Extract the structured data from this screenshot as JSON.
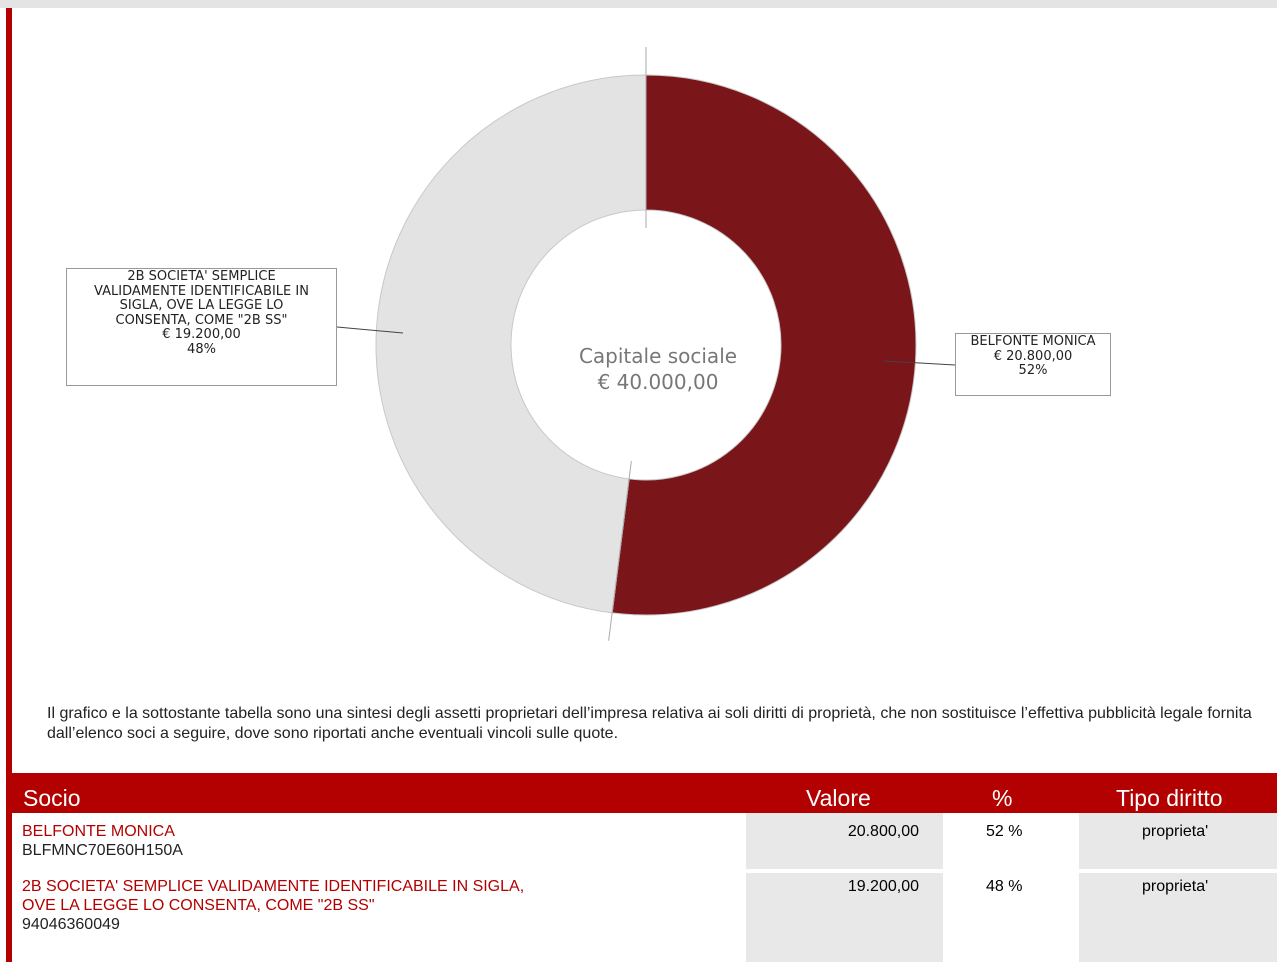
{
  "chart_data": {
    "type": "pie",
    "title": "",
    "center_label": [
      "Capitale sociale",
      "€ 40.000,00"
    ],
    "slices": [
      {
        "name": "BELFONTE MONICA",
        "value": 20800,
        "value_label": "€ 20.800,00",
        "percent_label": "52%",
        "color": "#7a1519"
      },
      {
        "name": "2B SOCIETA' SEMPLICE VALIDAMENTE IDENTIFICABILE IN SIGLA, OVE LA LEGGE LO CONSENTA, COME \"2B SS\"",
        "value": 19200,
        "value_label": "€ 19.200,00",
        "percent_label": "48%",
        "color": "#e3e3e3"
      }
    ]
  },
  "callouts": {
    "right": [
      "BELFONTE MONICA",
      "€ 20.800,00",
      "52%"
    ],
    "left": [
      "2B SOCIETA' SEMPLICE",
      "VALIDAMENTE IDENTIFICABILE IN",
      "SIGLA, OVE LA LEGGE LO",
      "CONSENTA, COME \"2B SS\"",
      "€ 19.200,00",
      "48%"
    ]
  },
  "note": "Il grafico e la sottostante tabella sono una sintesi degli assetti proprietari dell’impresa relativa ai soli diritti di proprietà, che non sostituisce l’effettiva pubblicità legale fornita dall’elenco soci a seguire, dove sono riportati anche eventuali vincoli sulle quote.",
  "table": {
    "headers": {
      "socio": "Socio",
      "valore": "Valore",
      "percent": "%",
      "tipo": "Tipo diritto"
    },
    "rows": [
      {
        "name_lines": [
          "BELFONTE MONICA"
        ],
        "code": "BLFMNC70E60H150A",
        "valore": "20.800,00",
        "percent": "52 %",
        "tipo": "proprieta'"
      },
      {
        "name_lines": [
          "2B SOCIETA' SEMPLICE VALIDAMENTE IDENTIFICABILE IN SIGLA,",
          "OVE LA LEGGE LO CONSENTA, COME \"2B SS\""
        ],
        "code": "94046360049",
        "valore": "19.200,00",
        "percent": "48 %",
        "tipo": "proprieta'"
      }
    ]
  },
  "colors": {
    "accent": "#b30000",
    "slice_main": "#7a1519",
    "slice_other": "#e3e3e3",
    "cell_shade": "#e8e8e8"
  }
}
